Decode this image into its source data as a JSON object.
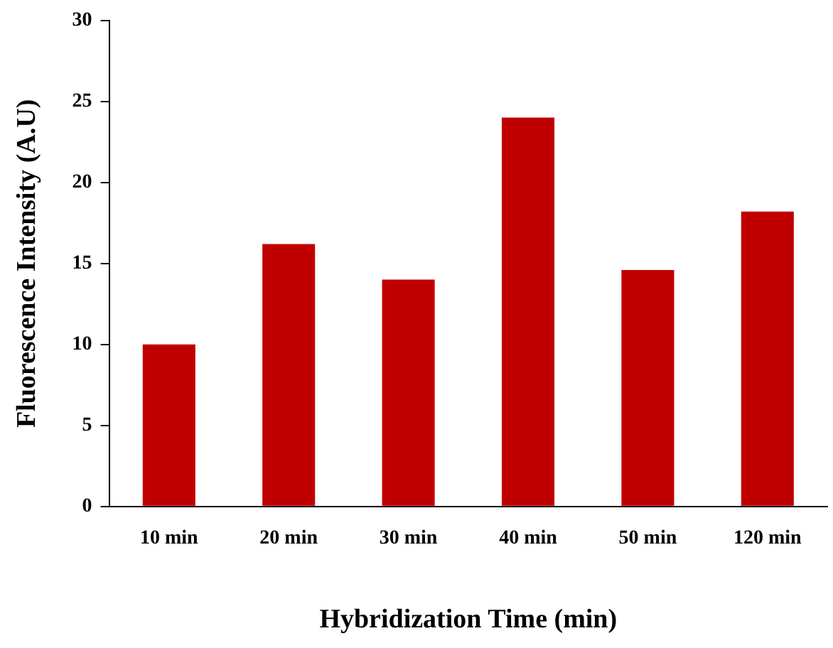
{
  "chart_data": {
    "type": "bar",
    "xlabel": "Hybridization Time (min)",
    "ylabel": "Fluorescence Intensity (A.U)",
    "categories": [
      "10 min",
      "20 min",
      "30 min",
      "40 min",
      "50 min",
      "120 min"
    ],
    "values": [
      10.0,
      16.2,
      14.0,
      24.0,
      14.6,
      18.2
    ],
    "color": "#c00000",
    "ylim": [
      0,
      30
    ],
    "yticks": [
      0,
      5,
      10,
      15,
      20,
      25,
      30
    ],
    "grid": false,
    "legend": false
  }
}
